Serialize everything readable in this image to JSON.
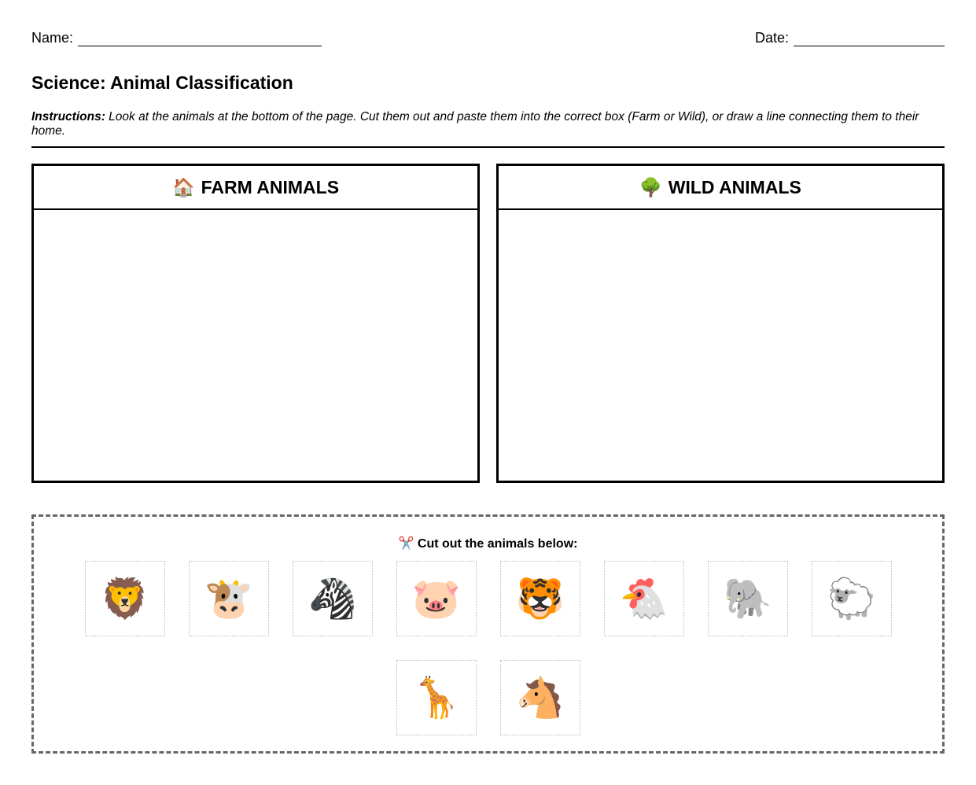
{
  "header": {
    "name_label": "Name:",
    "date_label": "Date:"
  },
  "title": "Science: Animal Classification",
  "instructions": {
    "label": "Instructions:",
    "text": " Look at the animals at the bottom of the page. Cut them out and paste them into the correct box (Farm or Wild), or draw a line connecting them to their home."
  },
  "boxes": [
    {
      "icon": "🏠",
      "title": "FARM ANIMALS"
    },
    {
      "icon": "🌳",
      "title": "WILD ANIMALS"
    }
  ],
  "cutout": {
    "icon": "✂️",
    "title": "Cut out the animals below:",
    "animals": [
      {
        "name": "lion",
        "emoji": "🦁"
      },
      {
        "name": "cow",
        "emoji": "🐮"
      },
      {
        "name": "zebra",
        "emoji": "🦓"
      },
      {
        "name": "pig",
        "emoji": "🐷"
      },
      {
        "name": "tiger",
        "emoji": "🐯"
      },
      {
        "name": "chicken",
        "emoji": "🐔"
      },
      {
        "name": "elephant",
        "emoji": "🐘"
      },
      {
        "name": "sheep",
        "emoji": "🐑"
      },
      {
        "name": "giraffe",
        "emoji": "🦒"
      },
      {
        "name": "horse",
        "emoji": "🐴"
      }
    ]
  }
}
